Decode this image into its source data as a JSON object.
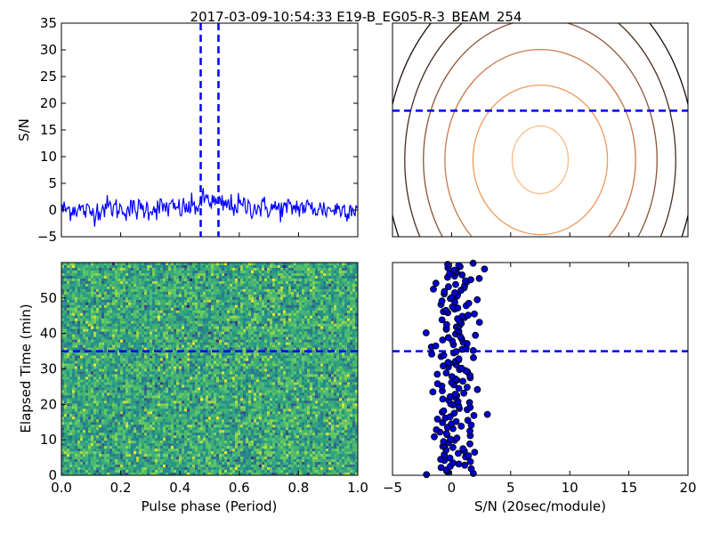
{
  "title": "2017-03-09-10:54:33 E19-B_EG05-R-3_BEAM_254",
  "colors": {
    "profile": "#0000ff",
    "marker": "#0000ff",
    "scatter_face": "#0000cc",
    "scatter_edge": "#000000",
    "contours": [
      "#fdbb84",
      "#f19a5c",
      "#c97a4a",
      "#8a5536",
      "#4a2d1e",
      "#1a0d08"
    ]
  },
  "chart_data": [
    {
      "type": "line",
      "name": "pulse-profile",
      "xlabel": "",
      "ylabel": "S/N",
      "xlim": [
        0.0,
        1.0
      ],
      "ylim": [
        -5,
        35
      ],
      "y_ticks": [
        -5,
        0,
        5,
        10,
        15,
        20,
        25,
        30,
        35
      ],
      "y_tick_labels": [
        "−5",
        "0",
        "5",
        "10",
        "15",
        "20",
        "25",
        "30",
        "35"
      ],
      "series": [
        {
          "x": [
            0.0,
            0.05,
            0.1,
            0.15,
            0.2,
            0.25,
            0.3,
            0.35,
            0.4,
            0.45,
            0.47,
            0.49,
            0.5,
            0.51,
            0.53,
            0.55,
            0.6,
            0.65,
            0.7,
            0.75,
            0.8,
            0.85,
            0.9,
            0.95,
            1.0
          ],
          "y": [
            0.0,
            0.3,
            -0.5,
            0.6,
            0.2,
            0.1,
            0.3,
            0.5,
            0.2,
            0.6,
            1.2,
            2.5,
            1.8,
            1.5,
            1.0,
            0.9,
            0.8,
            0.5,
            0.4,
            0.2,
            0.6,
            0.3,
            0.1,
            0.2,
            0.4
          ],
          "noise": 1.1
        }
      ],
      "vlines": [
        0.47,
        0.53
      ],
      "grid": false
    },
    {
      "type": "contour",
      "name": "contour-panel",
      "hline_fraction": 0.59,
      "contour_levels": 6,
      "grid": false
    },
    {
      "type": "heatmap",
      "name": "waterfall",
      "xlabel": "Pulse phase (Period)",
      "ylabel": "Elapsed Time (min)",
      "xlim": [
        0.0,
        1.0
      ],
      "ylim": [
        0,
        60
      ],
      "x_ticks": [
        0.0,
        0.2,
        0.4,
        0.6,
        0.8,
        1.0
      ],
      "x_tick_labels": [
        "0.0",
        "0.2",
        "0.4",
        "0.6",
        "0.8",
        "1.0"
      ],
      "y_ticks": [
        0,
        10,
        20,
        30,
        40,
        50
      ],
      "y_tick_labels": [
        "0",
        "10",
        "20",
        "30",
        "40",
        "50"
      ],
      "hline": 35,
      "colormap": "viridis",
      "grid": false
    },
    {
      "type": "scatter",
      "name": "sn-per-subint",
      "xlabel": "S/N (20sec/module)",
      "ylabel": "",
      "xlim": [
        -5,
        20
      ],
      "ylim": [
        0,
        60
      ],
      "x_ticks": [
        -5,
        0,
        5,
        10,
        15,
        20
      ],
      "x_tick_labels": [
        "−5",
        "0",
        "5",
        "10",
        "15",
        "20"
      ],
      "hline": 35,
      "n_points": 180,
      "x_center": 0.3,
      "x_spread": 1.0,
      "grid": false
    }
  ]
}
